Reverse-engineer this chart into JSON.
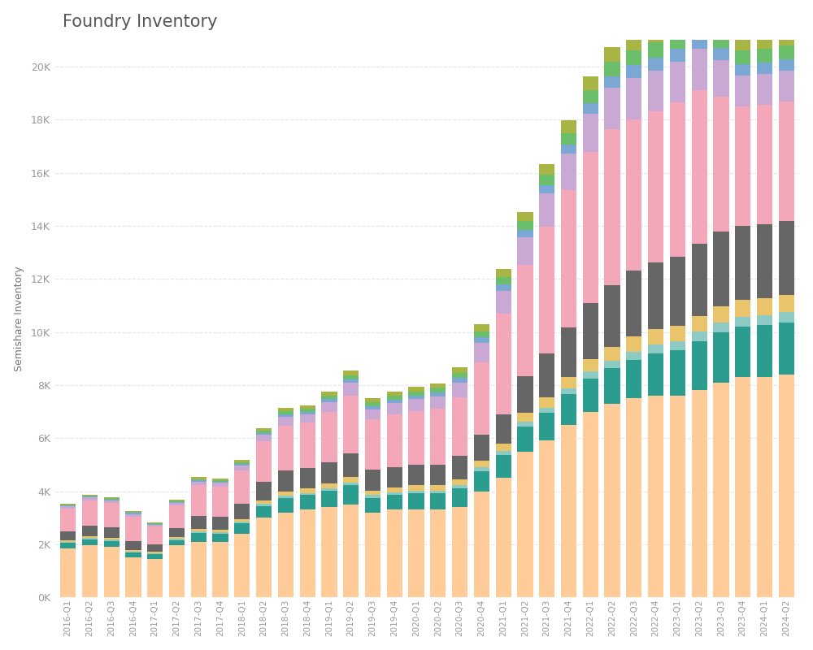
{
  "title": "Foundry Inventory",
  "ylabel": "Semishare Inventory",
  "quarters": [
    "2016-Q1",
    "2016-Q2",
    "2016-Q3",
    "2016-Q4",
    "2017-Q1",
    "2017-Q2",
    "2017-Q3",
    "2017-Q4",
    "2018-Q1",
    "2018-Q2",
    "2018-Q3",
    "2018-Q4",
    "2019-Q1",
    "2019-Q2",
    "2019-Q3",
    "2019-Q4",
    "2020-Q1",
    "2020-Q2",
    "2020-Q3",
    "2020-Q4",
    "2021-Q1",
    "2021-Q2",
    "2021-Q3",
    "2021-Q4",
    "2022-Q1",
    "2022-Q2",
    "2022-Q3",
    "2022-Q4",
    "2023-Q1",
    "2023-Q2",
    "2023-Q3",
    "2023-Q4",
    "2024-Q1",
    "2024-Q2"
  ],
  "series": {
    "orange": [
      1850,
      1950,
      1900,
      1500,
      1450,
      1950,
      2100,
      2100,
      2400,
      3000,
      3200,
      3300,
      3400,
      3500,
      3200,
      3300,
      3300,
      3300,
      3400,
      4000,
      4500,
      5500,
      5900,
      6500,
      7000,
      7300,
      7500,
      7600,
      7600,
      7800,
      8100,
      8300,
      8300,
      8400
    ],
    "teal": [
      200,
      230,
      230,
      180,
      180,
      210,
      320,
      300,
      380,
      450,
      550,
      550,
      620,
      720,
      550,
      550,
      620,
      620,
      700,
      750,
      850,
      950,
      1050,
      1150,
      1250,
      1350,
      1450,
      1600,
      1700,
      1850,
      1900,
      1900,
      1950,
      1950
    ],
    "light_teal": [
      40,
      50,
      50,
      40,
      40,
      50,
      60,
      60,
      70,
      80,
      90,
      90,
      100,
      110,
      100,
      100,
      110,
      110,
      120,
      140,
      160,
      180,
      200,
      230,
      260,
      280,
      310,
      330,
      350,
      360,
      370,
      380,
      390,
      400
    ],
    "yellow": [
      60,
      70,
      70,
      60,
      55,
      65,
      90,
      90,
      110,
      130,
      160,
      160,
      180,
      210,
      180,
      180,
      200,
      200,
      230,
      270,
      290,
      340,
      380,
      430,
      470,
      520,
      560,
      580,
      590,
      600,
      610,
      620,
      630,
      640
    ],
    "gray": [
      350,
      400,
      400,
      350,
      280,
      330,
      500,
      480,
      580,
      680,
      780,
      780,
      780,
      870,
      780,
      780,
      780,
      780,
      880,
      980,
      1100,
      1350,
      1650,
      1850,
      2100,
      2300,
      2500,
      2500,
      2600,
      2700,
      2800,
      2800,
      2800,
      2800
    ],
    "pink": [
      850,
      950,
      900,
      900,
      650,
      850,
      1150,
      1150,
      1250,
      1550,
      1700,
      1700,
      1900,
      2200,
      1900,
      2000,
      2000,
      2100,
      2200,
      2700,
      3800,
      4200,
      4800,
      5200,
      5700,
      5900,
      5700,
      5700,
      5800,
      5800,
      5100,
      4500,
      4500,
      4500
    ],
    "purple": [
      90,
      110,
      110,
      110,
      90,
      110,
      140,
      140,
      180,
      230,
      330,
      330,
      380,
      470,
      380,
      420,
      460,
      470,
      560,
      760,
      850,
      1050,
      1250,
      1350,
      1450,
      1550,
      1550,
      1550,
      1550,
      1550,
      1350,
      1150,
      1150,
      1150
    ],
    "blue": [
      25,
      35,
      35,
      35,
      25,
      35,
      45,
      45,
      60,
      70,
      90,
      90,
      110,
      130,
      120,
      120,
      140,
      150,
      170,
      190,
      240,
      270,
      310,
      360,
      400,
      440,
      480,
      490,
      490,
      490,
      460,
      440,
      440,
      440
    ],
    "green": [
      25,
      35,
      35,
      35,
      25,
      35,
      55,
      55,
      65,
      85,
      110,
      110,
      130,
      160,
      140,
      140,
      150,
      160,
      190,
      240,
      280,
      330,
      380,
      430,
      480,
      530,
      560,
      580,
      580,
      580,
      550,
      520,
      520,
      520
    ],
    "olive": [
      35,
      45,
      45,
      45,
      35,
      45,
      65,
      65,
      80,
      100,
      130,
      130,
      150,
      180,
      160,
      160,
      170,
      180,
      210,
      260,
      310,
      360,
      410,
      470,
      520,
      560,
      590,
      610,
      620,
      630,
      600,
      570,
      570,
      570
    ]
  },
  "colors": {
    "orange": "#FFCC99",
    "teal": "#2A9D8F",
    "light_teal": "#8ECAC4",
    "yellow": "#E9C46A",
    "gray": "#666666",
    "pink": "#F4A7B9",
    "purple": "#C9A8D4",
    "blue": "#7BA7D4",
    "green": "#6BBF6A",
    "olive": "#A8B545"
  },
  "ylim": [
    0,
    21000
  ],
  "yticks": [
    0,
    2000,
    4000,
    6000,
    8000,
    10000,
    12000,
    14000,
    16000,
    18000,
    20000
  ],
  "background_color": "#ffffff",
  "grid_color": "#e5e5e5"
}
